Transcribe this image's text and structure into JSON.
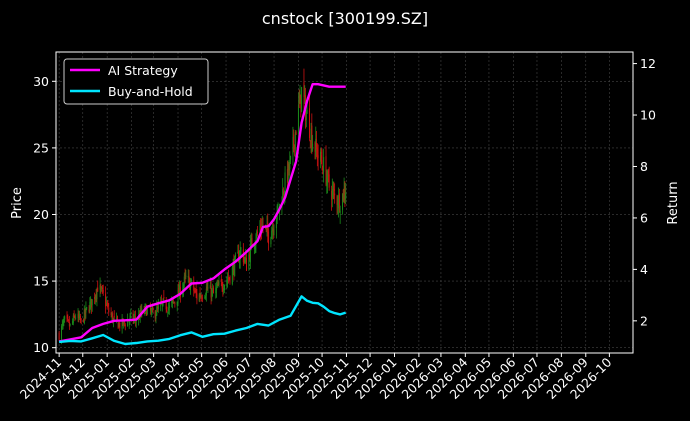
{
  "chart_data": {
    "type": "candlestick+line",
    "title": "cnstock [300199.SZ]",
    "xlabel": "",
    "ylabel_left": "Price",
    "ylabel_right": "Return",
    "grid": true,
    "legend_position": "top-left",
    "colors": {
      "background": "#000000",
      "up": "#1a8a1a",
      "down": "#cc1111",
      "ai_strategy": "#ff00ff",
      "buy_and_hold": "#00e5ff",
      "grid": "#444444"
    },
    "x_ticks": [
      "2024-11",
      "2024-12",
      "2025-01",
      "2025-02",
      "2025-03",
      "2025-04",
      "2025-05",
      "2025-06",
      "2025-07",
      "2025-08",
      "2025-09",
      "2025-10",
      "2025-11",
      "2025-12",
      "2026-01",
      "2026-02",
      "2026-03",
      "2026-04",
      "2026-05",
      "2026-06",
      "2026-07",
      "2026-08",
      "2026-09",
      "2026-10"
    ],
    "x_range": [
      "2024-10-28",
      "2026-10-31"
    ],
    "y_left": {
      "range": [
        9.6,
        32.2
      ],
      "ticks": [
        10,
        15,
        20,
        25,
        30
      ]
    },
    "y_right": {
      "range": [
        0.75,
        12.45
      ],
      "ticks": [
        2,
        4,
        6,
        8,
        10,
        12
      ]
    },
    "price_close": [
      [
        "2024-11-01",
        11.0
      ],
      [
        "2024-11-08",
        12.0
      ],
      [
        "2024-11-15",
        11.6
      ],
      [
        "2024-11-22",
        12.4
      ],
      [
        "2024-11-29",
        11.9
      ],
      [
        "2024-12-06",
        12.8
      ],
      [
        "2024-12-13",
        13.5
      ],
      [
        "2024-12-20",
        14.6
      ],
      [
        "2024-12-27",
        13.9
      ],
      [
        "2025-01-03",
        12.7
      ],
      [
        "2025-01-10",
        12.0
      ],
      [
        "2025-01-17",
        11.7
      ],
      [
        "2025-01-24",
        11.9
      ],
      [
        "2025-01-31",
        12.2
      ],
      [
        "2025-02-07",
        12.1
      ],
      [
        "2025-02-14",
        12.6
      ],
      [
        "2025-02-21",
        12.9
      ],
      [
        "2025-02-28",
        12.5
      ],
      [
        "2025-03-07",
        12.9
      ],
      [
        "2025-03-14",
        13.3
      ],
      [
        "2025-03-21",
        13.0
      ],
      [
        "2025-03-28",
        13.5
      ],
      [
        "2025-04-04",
        14.3
      ],
      [
        "2025-04-11",
        15.2
      ],
      [
        "2025-04-18",
        14.7
      ],
      [
        "2025-04-25",
        13.8
      ],
      [
        "2025-05-02",
        14.1
      ],
      [
        "2025-05-09",
        14.4
      ],
      [
        "2025-05-16",
        14.0
      ],
      [
        "2025-05-23",
        14.6
      ],
      [
        "2025-05-30",
        14.9
      ],
      [
        "2025-06-06",
        15.4
      ],
      [
        "2025-06-13",
        16.4
      ],
      [
        "2025-06-20",
        17.3
      ],
      [
        "2025-06-27",
        16.2
      ],
      [
        "2025-07-04",
        17.9
      ],
      [
        "2025-07-11",
        18.6
      ],
      [
        "2025-07-18",
        19.2
      ],
      [
        "2025-07-25",
        18.4
      ],
      [
        "2025-08-01",
        19.4
      ],
      [
        "2025-08-08",
        20.6
      ],
      [
        "2025-08-15",
        22.4
      ],
      [
        "2025-08-22",
        23.8
      ],
      [
        "2025-08-29",
        26.6
      ],
      [
        "2025-09-05",
        29.2
      ],
      [
        "2025-09-12",
        27.4
      ],
      [
        "2025-09-19",
        25.6
      ],
      [
        "2025-09-26",
        24.4
      ],
      [
        "2025-10-03",
        23.6
      ],
      [
        "2025-10-10",
        22.1
      ],
      [
        "2025-10-17",
        21.3
      ],
      [
        "2025-10-24",
        21.0
      ],
      [
        "2025-10-31",
        22.0
      ]
    ],
    "series": [
      {
        "name": "AI Strategy",
        "values": [
          [
            "2024-11-01",
            1.2
          ],
          [
            "2024-11-15",
            1.28
          ],
          [
            "2024-11-29",
            1.36
          ],
          [
            "2024-12-13",
            1.72
          ],
          [
            "2024-12-27",
            1.88
          ],
          [
            "2025-01-10",
            2.0
          ],
          [
            "2025-01-24",
            2.02
          ],
          [
            "2025-02-07",
            2.05
          ],
          [
            "2025-02-21",
            2.55
          ],
          [
            "2025-03-07",
            2.68
          ],
          [
            "2025-03-21",
            2.8
          ],
          [
            "2025-04-04",
            3.05
          ],
          [
            "2025-04-18",
            3.45
          ],
          [
            "2025-05-02",
            3.48
          ],
          [
            "2025-05-16",
            3.65
          ],
          [
            "2025-05-30",
            4.0
          ],
          [
            "2025-06-13",
            4.3
          ],
          [
            "2025-06-27",
            4.68
          ],
          [
            "2025-07-11",
            5.1
          ],
          [
            "2025-07-18",
            5.65
          ],
          [
            "2025-07-25",
            5.68
          ],
          [
            "2025-08-01",
            5.95
          ],
          [
            "2025-08-08",
            6.35
          ],
          [
            "2025-08-15",
            6.8
          ],
          [
            "2025-08-22",
            7.5
          ],
          [
            "2025-08-29",
            8.2
          ],
          [
            "2025-09-05",
            9.7
          ],
          [
            "2025-09-12",
            10.55
          ],
          [
            "2025-09-19",
            11.2
          ],
          [
            "2025-09-26",
            11.2
          ],
          [
            "2025-10-10",
            11.1
          ],
          [
            "2025-10-24",
            11.1
          ],
          [
            "2025-10-31",
            11.1
          ]
        ]
      },
      {
        "name": "Buy-and-Hold",
        "values": [
          [
            "2024-11-01",
            1.18
          ],
          [
            "2024-11-15",
            1.22
          ],
          [
            "2024-11-29",
            1.2
          ],
          [
            "2024-12-13",
            1.32
          ],
          [
            "2024-12-27",
            1.45
          ],
          [
            "2025-01-10",
            1.22
          ],
          [
            "2025-01-24",
            1.1
          ],
          [
            "2025-02-07",
            1.14
          ],
          [
            "2025-02-21",
            1.2
          ],
          [
            "2025-03-07",
            1.23
          ],
          [
            "2025-03-21",
            1.3
          ],
          [
            "2025-04-04",
            1.44
          ],
          [
            "2025-04-18",
            1.55
          ],
          [
            "2025-05-02",
            1.38
          ],
          [
            "2025-05-16",
            1.48
          ],
          [
            "2025-05-30",
            1.5
          ],
          [
            "2025-06-13",
            1.62
          ],
          [
            "2025-06-27",
            1.72
          ],
          [
            "2025-07-11",
            1.88
          ],
          [
            "2025-07-25",
            1.82
          ],
          [
            "2025-08-08",
            2.05
          ],
          [
            "2025-08-22",
            2.2
          ],
          [
            "2025-09-05",
            2.95
          ],
          [
            "2025-09-12",
            2.78
          ],
          [
            "2025-09-19",
            2.7
          ],
          [
            "2025-09-26",
            2.68
          ],
          [
            "2025-10-03",
            2.55
          ],
          [
            "2025-10-10",
            2.38
          ],
          [
            "2025-10-17",
            2.3
          ],
          [
            "2025-10-24",
            2.25
          ],
          [
            "2025-10-31",
            2.32
          ]
        ]
      }
    ]
  }
}
